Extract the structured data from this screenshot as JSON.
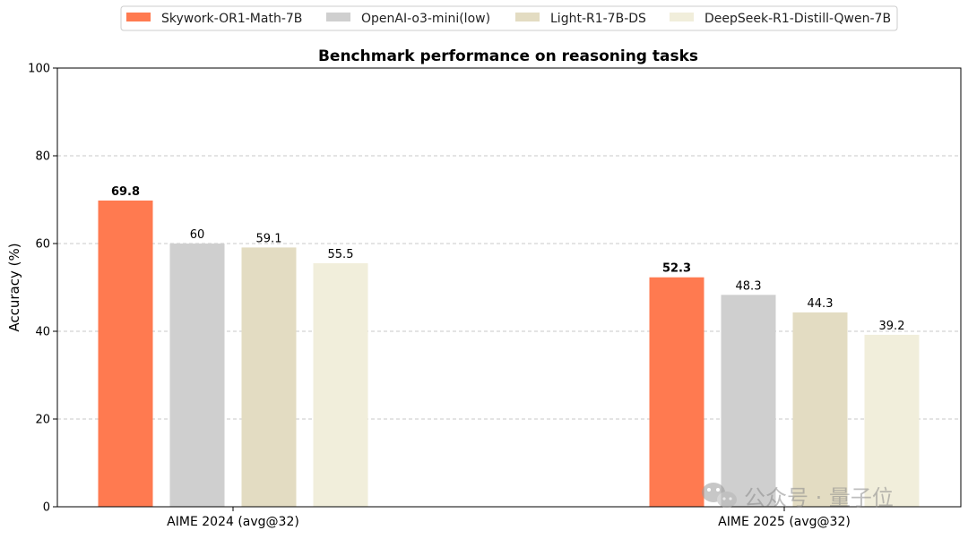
{
  "chart_data": {
    "type": "bar",
    "title": "Benchmark performance on reasoning tasks",
    "xlabel": "",
    "ylabel": "Accuracy (%)",
    "ylim": [
      0,
      100
    ],
    "yticks": [
      "0",
      "20",
      "40",
      "60",
      "80",
      "100"
    ],
    "grid": true,
    "legend_position": "top-center",
    "categories": [
      "AIME 2024 (avg@32)",
      "AIME 2025 (avg@32)"
    ],
    "series": [
      {
        "name": "Skywork-OR1-Math-7B",
        "color": "#ff7a50",
        "values": [
          69.8,
          52.3
        ],
        "labels": [
          "69.8",
          "52.3"
        ],
        "bold_labels": true
      },
      {
        "name": "OpenAI-o3-mini(low)",
        "color": "#cfcfcf",
        "values": [
          60,
          48.3
        ],
        "labels": [
          "60",
          "48.3"
        ],
        "bold_labels": false
      },
      {
        "name": "Light-R1-7B-DS",
        "color": "#e3dcc2",
        "values": [
          59.1,
          44.3
        ],
        "labels": [
          "59.1",
          "44.3"
        ],
        "bold_labels": false
      },
      {
        "name": "DeepSeek-R1-Distill-Qwen-7B",
        "color": "#f1eedb",
        "values": [
          55.5,
          39.2
        ],
        "labels": [
          "55.5",
          "39.2"
        ],
        "bold_labels": false
      }
    ]
  },
  "watermark": {
    "text": "公众号 · 量子位",
    "icon": "wechat-icon"
  }
}
